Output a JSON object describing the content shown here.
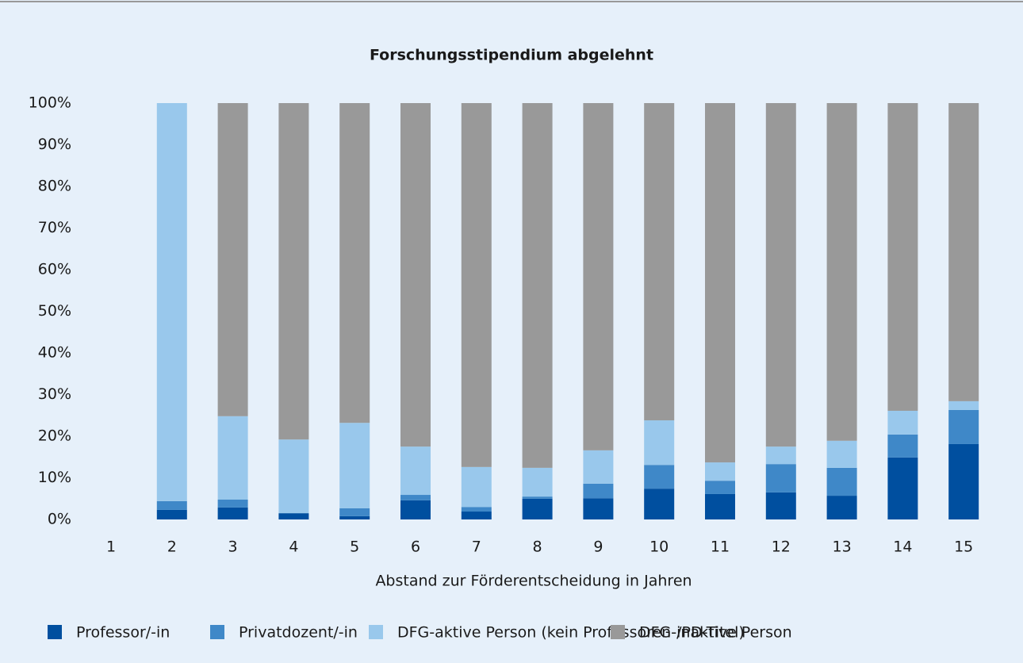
{
  "chart_data": {
    "type": "stacked_bar",
    "title": "Forschungsstipendium abgelehnt",
    "x_label": "Abstand zur Förderentscheidung in Jahren",
    "categories": [
      "1",
      "2",
      "3",
      "4",
      "5",
      "6",
      "7",
      "8",
      "9",
      "10",
      "11",
      "12",
      "13",
      "14",
      "15"
    ],
    "series": [
      {
        "name": "Professor/-in",
        "color": "#004f9f",
        "values": [
          null,
          2.3,
          2.9,
          1.5,
          0.8,
          4.6,
          1.9,
          5.0,
          5.1,
          7.4,
          6.1,
          6.5,
          5.7,
          14.9,
          18.1
        ]
      },
      {
        "name": "Privatdozent/-in",
        "color": "#3f88c8",
        "values": [
          null,
          2.1,
          1.9,
          0.0,
          1.9,
          1.3,
          1.1,
          0.5,
          3.5,
          5.7,
          3.2,
          6.8,
          6.7,
          5.5,
          8.2
        ]
      },
      {
        "name": "DFG-aktive Person (kein Professoren-/PD-Titel)",
        "color": "#99c8ec",
        "values": [
          null,
          95.6,
          20.0,
          17.7,
          20.5,
          11.6,
          9.6,
          6.9,
          8.0,
          10.7,
          4.4,
          4.2,
          6.5,
          5.7,
          2.1
        ]
      },
      {
        "name": "DFG-inaktive Person",
        "color": "#999999",
        "values": [
          null,
          0.0,
          75.2,
          80.8,
          76.8,
          82.5,
          87.4,
          87.6,
          83.4,
          76.2,
          86.3,
          82.5,
          81.1,
          73.9,
          71.6
        ]
      }
    ],
    "ylim": [
      0,
      100
    ],
    "yticks": [
      {
        "value": 0,
        "label": "0%"
      },
      {
        "value": 10,
        "label": "10%"
      },
      {
        "value": 20,
        "label": "20%"
      },
      {
        "value": 30,
        "label": "30%"
      },
      {
        "value": 40,
        "label": "40%"
      },
      {
        "value": 50,
        "label": "50%"
      },
      {
        "value": 60,
        "label": "60%"
      },
      {
        "value": 70,
        "label": "70%"
      },
      {
        "value": 80,
        "label": "80%"
      },
      {
        "value": 90,
        "label": "90%"
      },
      {
        "value": 100,
        "label": "100%"
      }
    ],
    "legend": "bottom"
  }
}
